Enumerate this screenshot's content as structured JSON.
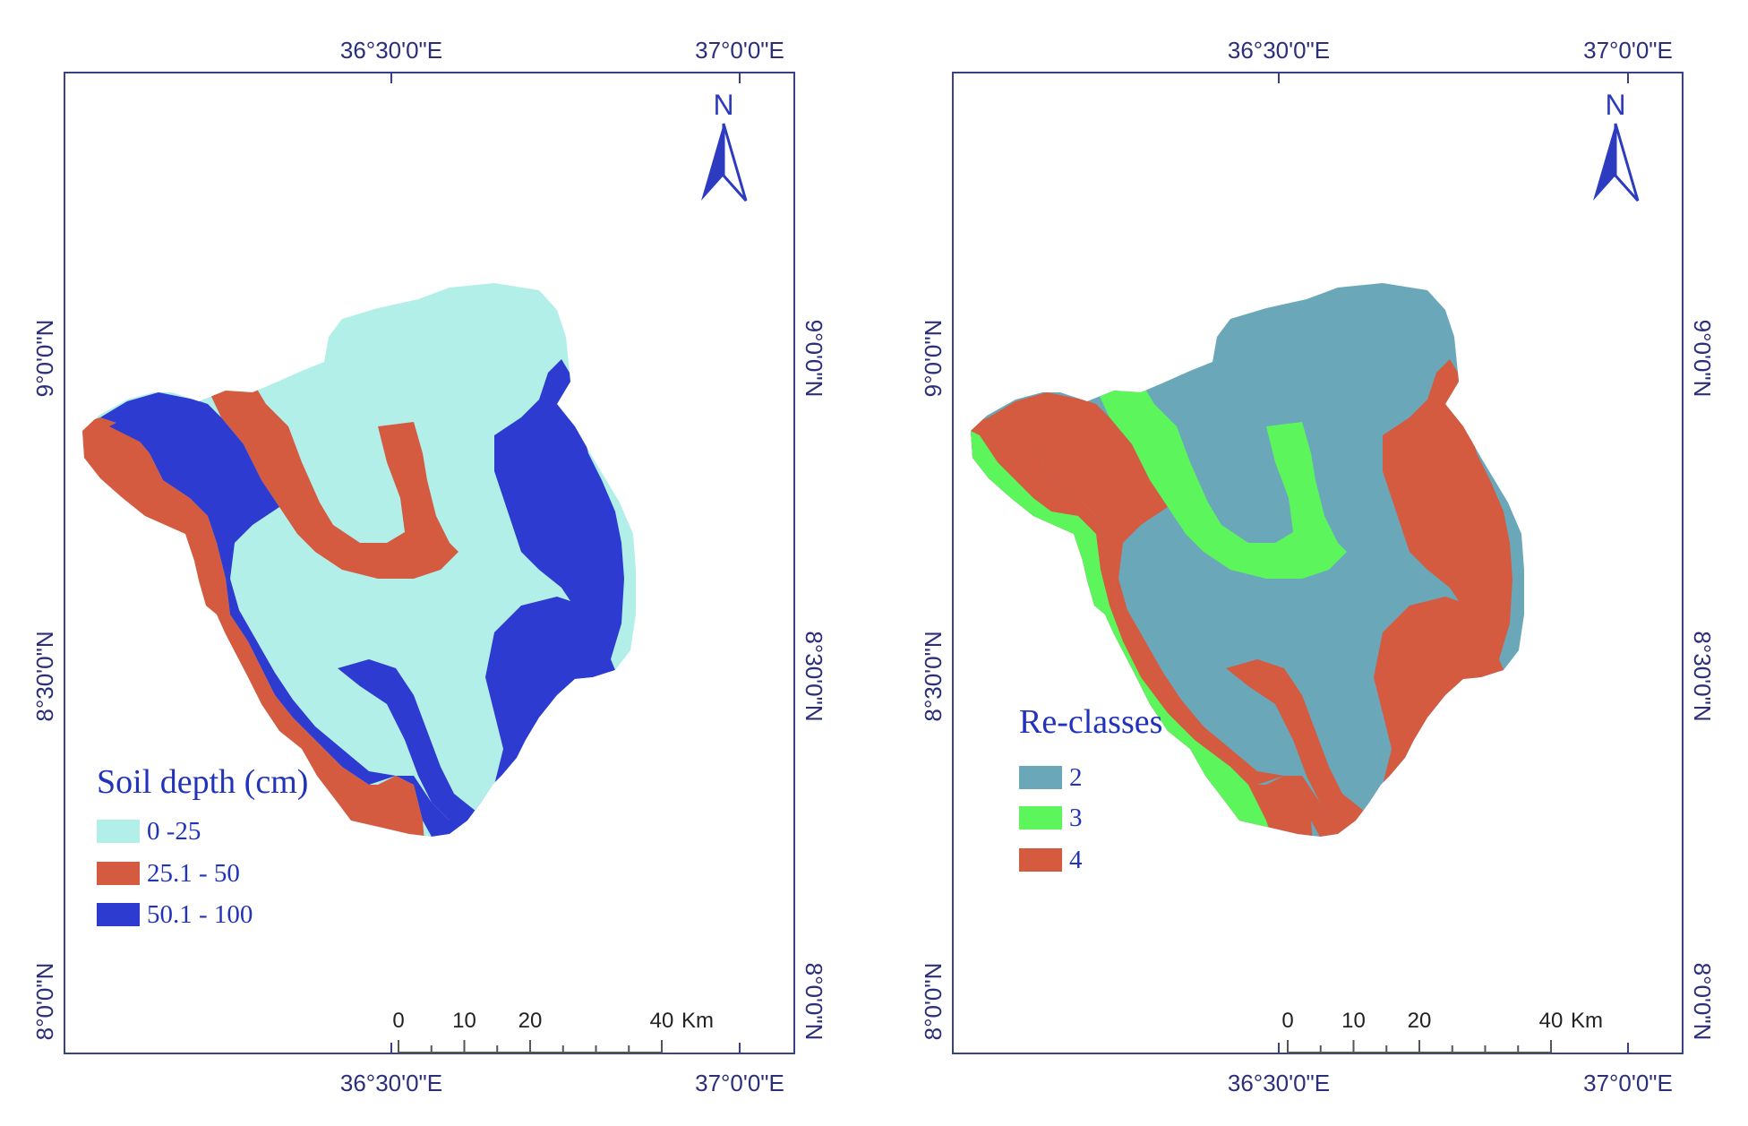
{
  "maps": [
    {
      "id": "soil-depth",
      "legend": {
        "title": "Soil depth (cm)",
        "items": [
          {
            "label": "0 -25",
            "color": "#b2efe9"
          },
          {
            "label": "25.1 - 50",
            "color": "#d45a40"
          },
          {
            "label": "50.1 - 100",
            "color": "#2d3bd0"
          }
        ]
      }
    },
    {
      "id": "re-classes",
      "legend": {
        "title": "Re-classes",
        "items": [
          {
            "label": "2",
            "color": "#6aa8b9"
          },
          {
            "label": "3",
            "color": "#5cf55c"
          },
          {
            "label": "4",
            "color": "#d45a40"
          }
        ]
      }
    }
  ],
  "coords": {
    "lon1": "36°30'0\"E",
    "lon2": "37°0'0\"E",
    "lat_top": "9°0'0\"N",
    "lat_mid": "8°30'0\"N",
    "lat_bot": "8°0'0\"N"
  },
  "north_label": "N",
  "scale": {
    "ticks": [
      "0",
      "10",
      "20",
      "40"
    ],
    "unit": "Km"
  }
}
